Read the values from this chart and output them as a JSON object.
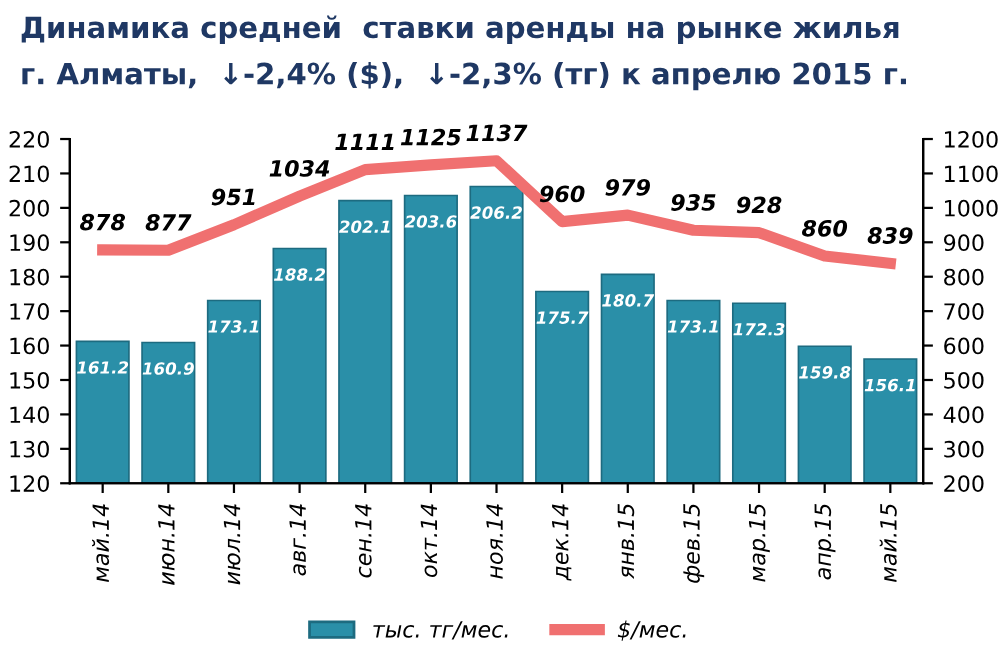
{
  "chart_data": {
    "type": "bar",
    "title": "Динамика средней  ставки аренды на рынке жилья",
    "subtitle": "г. Алматы,  ↓-2,4% ($),  ↓-2,3% (тг) к апрелю 2015 г.",
    "categories": [
      "май.14",
      "июн.14",
      "июл.14",
      "авг.14",
      "сен.14",
      "окт.14",
      "ноя.14",
      "дек.14",
      "янв.15",
      "фев.15",
      "мар.15",
      "апр.15",
      "май.15"
    ],
    "series": [
      {
        "name": "тыс. тг/мес.",
        "color": "#2a8fa8",
        "values": [
          161.2,
          160.9,
          173.1,
          188.2,
          202.1,
          203.6,
          206.2,
          175.7,
          180.7,
          173.1,
          172.3,
          159.8,
          156.1
        ]
      },
      {
        "name": "$/мес.",
        "type": "line",
        "axis": "y2",
        "color": "#f07070",
        "values": [
          878,
          877,
          951,
          1034,
          1111,
          1125,
          1137,
          960,
          979,
          935,
          928,
          860,
          839
        ]
      }
    ],
    "ylim": [
      120,
      220
    ],
    "yticks": [
      120,
      130,
      140,
      150,
      160,
      170,
      180,
      190,
      200,
      210,
      220
    ],
    "y2lim": [
      200,
      1200
    ],
    "y2ticks": [
      200,
      300,
      400,
      500,
      600,
      700,
      800,
      900,
      1000,
      1100,
      1200
    ],
    "data_labels": true,
    "grid": false,
    "legend": "bottom",
    "marker": "none",
    "line_style": "solid"
  }
}
